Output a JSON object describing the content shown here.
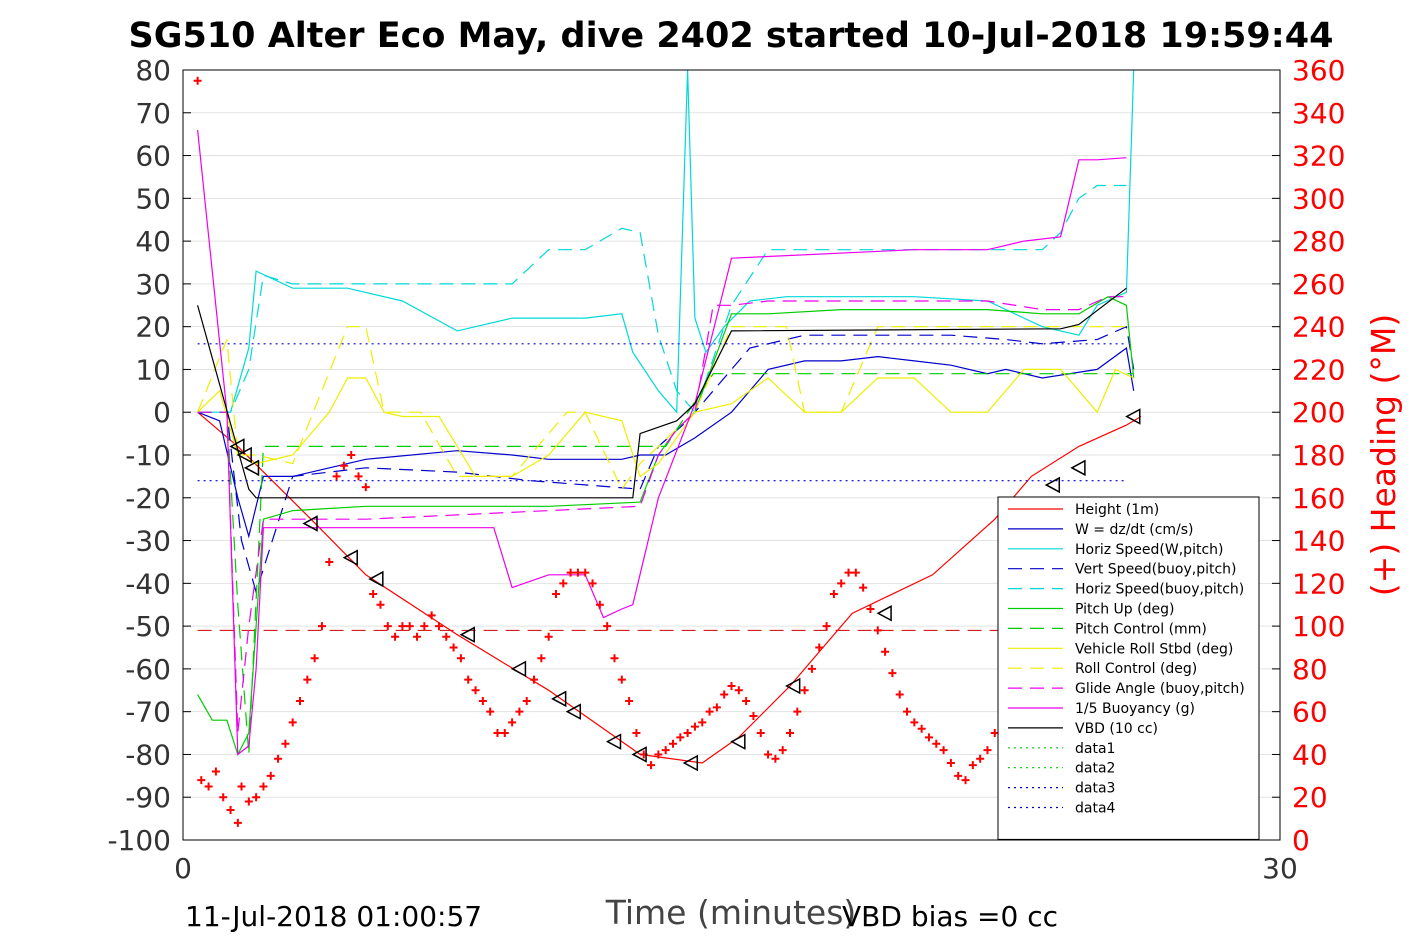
{
  "title": "SG510 Alter Eco May, dive 2402 started 10-Jul-2018 19:59:44",
  "footer": {
    "left_timestamp": "11-Jul-2018 01:00:57",
    "vbd_bias": "VBD bias =0 cc"
  },
  "chart_data": {
    "type": "line",
    "xlabel": "Time (minutes)",
    "ylabel_left": "",
    "ylabel_right": "(+) Heading (°M)",
    "xlim": [
      0,
      30
    ],
    "ylim_left": [
      -100,
      80
    ],
    "ylim_right": [
      0,
      360
    ],
    "x_ticks": [
      0,
      30
    ],
    "y_ticks_left": [
      -100,
      -90,
      -80,
      -70,
      -60,
      -50,
      -40,
      -30,
      -20,
      -10,
      0,
      10,
      20,
      30,
      40,
      50,
      60,
      70,
      80
    ],
    "y_ticks_right": [
      0,
      20,
      40,
      60,
      80,
      100,
      120,
      140,
      160,
      180,
      200,
      220,
      240,
      260,
      280,
      300,
      320,
      340,
      360
    ],
    "grid": true,
    "legend_position": "lower-right",
    "series": [
      {
        "name": "Height (1m)",
        "color": "#ff0000",
        "dash": "solid",
        "x": [
          0.4,
          1.5,
          3.5,
          5.0,
          7.5,
          10.0,
          12.5,
          14.2,
          15.2,
          16.6,
          18.3,
          20.5,
          22.2,
          23.2,
          24.5,
          25.8,
          26.2
        ],
        "y": [
          0,
          -8,
          -25,
          -38,
          -52,
          -65,
          -80,
          -82,
          -76,
          -64,
          -47,
          -38,
          -25,
          -15,
          -8,
          -3,
          -1
        ]
      },
      {
        "name": "W = dz/dt (cm/s)",
        "color": "#0000cc",
        "dash": "solid",
        "x": [
          0.4,
          1.0,
          1.5,
          1.8,
          2.2,
          3.0,
          5.0,
          7.5,
          9.0,
          10.0,
          11.0,
          12.0,
          12.5,
          13.2,
          14.0,
          15.0,
          16.0,
          17.0,
          18.0,
          19.0,
          20.0,
          21.0,
          22.0,
          22.5,
          23.5,
          25.0,
          25.8,
          26.0
        ],
        "y": [
          0,
          -2,
          -20,
          -29,
          -15,
          -15,
          -11,
          -9,
          -10,
          -11,
          -11,
          -11,
          -10,
          -10,
          -6,
          0,
          10,
          12,
          12,
          13,
          12,
          11,
          9,
          10,
          8,
          10,
          15,
          5
        ]
      },
      {
        "name": "Horiz Speed(W,pitch)",
        "color": "#00d8d8",
        "dash": "solid",
        "x": [
          0.4,
          1.3,
          1.8,
          2.0,
          3.0,
          4.5,
          6.0,
          7.5,
          9.0,
          10.0,
          11.0,
          12.0,
          12.3,
          13.0,
          13.5,
          13.8,
          14.0,
          14.3,
          14.8,
          15.5,
          16.5,
          18.0,
          20.0,
          22.0,
          23.5,
          24.5,
          25.0,
          25.8,
          26.0
        ],
        "y": [
          0,
          0,
          15,
          33,
          29,
          29,
          26,
          19,
          22,
          22,
          22,
          23,
          14,
          5,
          0,
          80,
          22,
          14,
          20,
          26,
          27,
          27,
          27,
          26,
          20,
          18,
          25,
          28,
          80
        ]
      },
      {
        "name": "Vert Speed(buoy,pitch)",
        "color": "#0000cc",
        "dash": "dashed",
        "x": [
          0.4,
          1.2,
          1.6,
          2.0,
          3.0,
          5.0,
          7.5,
          9.5,
          11.0,
          12.5,
          13.0,
          13.8,
          14.5,
          15.5,
          17.0,
          19.0,
          21.0,
          22.5,
          23.5,
          25.0,
          25.8,
          26.0
        ],
        "y": [
          0,
          0,
          -30,
          -42,
          -15,
          -13,
          -14,
          -16,
          -17,
          -18,
          -8,
          -2,
          5,
          15,
          18,
          18,
          18,
          17,
          16,
          17,
          20,
          10
        ]
      },
      {
        "name": "Horiz Speed(buoy,pitch)",
        "color": "#00d8d8",
        "dash": "dashed",
        "x": [
          0.4,
          1.3,
          1.8,
          2.2,
          3.0,
          5.0,
          7.5,
          9.0,
          10.0,
          11.0,
          12.0,
          12.5,
          13.0,
          13.5,
          14.0,
          15.0,
          16.0,
          18.0,
          20.0,
          22.0,
          23.5,
          24.0,
          24.5,
          25.0,
          25.8
        ],
        "y": [
          0,
          0,
          10,
          32,
          30,
          30,
          30,
          30,
          38,
          38,
          43,
          42,
          18,
          5,
          0,
          25,
          38,
          38,
          38,
          38,
          38,
          42,
          50,
          53,
          53
        ]
      },
      {
        "name": "Pitch Up (deg)",
        "color": "#00cc00",
        "dash": "solid",
        "x": [
          0.4,
          0.8,
          1.2,
          1.5,
          1.8,
          2.2,
          3.0,
          5.0,
          7.5,
          10.0,
          12.5,
          13.0,
          13.5,
          14.0,
          15.0,
          16.0,
          18.0,
          20.0,
          22.0,
          23.5,
          24.5,
          25.3,
          25.8,
          26.0
        ],
        "y": [
          -66,
          -72,
          -72,
          -80,
          -75,
          -25,
          -23,
          -22,
          -22,
          -22,
          -21,
          -10,
          -4,
          0,
          23,
          23,
          24,
          24,
          24,
          23,
          23,
          27,
          25,
          8
        ]
      },
      {
        "name": "Pitch Control (mm)",
        "color": "#00cc00",
        "dash": "dashed",
        "x": [
          0.4,
          1.2,
          1.5,
          1.8,
          2.2,
          12.8,
          13.2,
          14.5,
          15.0,
          25.8,
          26.0
        ],
        "y": [
          0,
          0,
          -45,
          -80,
          -8,
          -8,
          -8,
          9,
          9,
          9,
          9
        ]
      },
      {
        "name": "Vehicle Roll Stbd (deg)",
        "color": "#eeee00",
        "dash": "solid",
        "x": [
          0.4,
          1.0,
          1.5,
          2.0,
          3.0,
          4.0,
          4.5,
          5.0,
          5.5,
          6.0,
          7.0,
          8.0,
          9.0,
          10.0,
          11.0,
          12.0,
          12.5,
          13.0,
          14.0,
          15.0,
          16.0,
          17.0,
          18.0,
          19.0,
          20.0,
          21.0,
          22.0,
          23.0,
          24.0,
          25.0,
          25.5,
          26.0
        ],
        "y": [
          0,
          5,
          -10,
          -12,
          -10,
          0,
          8,
          8,
          0,
          -1,
          -1,
          -15,
          -15,
          -10,
          0,
          -2,
          -15,
          -12,
          0,
          2,
          8,
          0,
          0,
          8,
          8,
          0,
          0,
          10,
          10,
          0,
          10,
          8
        ]
      },
      {
        "name": "Roll Control (deg)",
        "color": "#eeee00",
        "dash": "dashed",
        "x": [
          0.4,
          1.2,
          1.5,
          2.0,
          3.0,
          4.5,
          5.0,
          5.5,
          6.5,
          7.5,
          9.0,
          10.5,
          11.0,
          12.0,
          12.5,
          14.0,
          15.0,
          16.5,
          17.0,
          18.0,
          19.0,
          20.0,
          22.0,
          24.0,
          25.0,
          25.8
        ],
        "y": [
          0,
          17,
          -10,
          -10,
          -12,
          20,
          20,
          0,
          0,
          -15,
          -15,
          0,
          0,
          -18,
          -12,
          0,
          20,
          20,
          0,
          0,
          20,
          20,
          20,
          20,
          20,
          20
        ]
      },
      {
        "name": "Glide Angle (buoy,pitch)",
        "color": "#ee00ee",
        "dash": "dashed",
        "x": [
          0.4,
          1.2,
          1.5,
          1.8,
          2.2,
          3.0,
          5.0,
          7.5,
          10.0,
          12.5,
          13.0,
          13.5,
          14.0,
          14.5,
          15.0,
          16.0,
          18.0,
          20.0,
          22.0,
          23.5,
          24.5,
          25.3,
          25.8
        ],
        "y": [
          0,
          0,
          -75,
          -50,
          -25,
          -25,
          -25,
          -24,
          -23,
          -22,
          -10,
          -4,
          0,
          25,
          25,
          26,
          26,
          26,
          26,
          24,
          24,
          27,
          27
        ]
      },
      {
        "name": "1/5 Buoyancy (g)",
        "color": "#ee00ee",
        "dash": "solid",
        "x": [
          0.4,
          1.2,
          1.5,
          1.8,
          2.0,
          2.2,
          5.0,
          6.0,
          7.0,
          8.5,
          9.0,
          10.0,
          11.0,
          11.5,
          12.0,
          12.3,
          13.0,
          14.0,
          15.0,
          20.0,
          22.0,
          23.0,
          24.0,
          24.5,
          25.0,
          25.8
        ],
        "y": [
          66,
          0,
          -80,
          -78,
          -60,
          -27,
          -27,
          -27,
          -27,
          -27,
          -41,
          -38,
          -38,
          -48,
          -46,
          -45,
          -20,
          2,
          36,
          38,
          38,
          40,
          41,
          59,
          59,
          59.5
        ]
      },
      {
        "name": "VBD (10 cc)",
        "color": "#000000",
        "dash": "solid",
        "x": [
          0.4,
          1.8,
          2.0,
          3.5,
          12.3,
          12.5,
          13.5,
          14.0,
          15.0,
          24.0,
          24.5,
          25.8
        ],
        "y": [
          25,
          -18,
          -20,
          -20,
          -20,
          -5,
          -2,
          2,
          19,
          19.5,
          20.5,
          29
        ]
      },
      {
        "name": "data1",
        "color": "#00cc00",
        "dash": "dotted",
        "x": [],
        "y": []
      },
      {
        "name": "data2",
        "color": "#00cc00",
        "dash": "dotted",
        "x": [],
        "y": []
      },
      {
        "name": "data3",
        "color": "#0000cc",
        "dash": "dotted",
        "x": [
          0.4,
          25.8
        ],
        "y": [
          16,
          16
        ]
      },
      {
        "name": "data4",
        "color": "#0000cc",
        "dash": "dotted",
        "x": [
          0.4,
          25.8
        ],
        "y": [
          -16,
          -16
        ]
      }
    ],
    "reference_line": {
      "color": "#cc0000",
      "dash": "dashed",
      "y": -51,
      "x": [
        0.4,
        25.8
      ]
    },
    "triangle_markers": {
      "color": "#000000",
      "x": [
        1.5,
        1.7,
        1.9,
        3.5,
        4.6,
        5.3,
        7.8,
        9.2,
        10.3,
        10.7,
        11.8,
        12.5,
        13.9,
        15.2,
        16.7,
        19.2,
        23.8,
        24.5,
        26.0
      ],
      "y": [
        -8,
        -10,
        -13,
        -26,
        -34,
        -39,
        -52,
        -60,
        -67,
        -70,
        -77,
        -80,
        -82,
        -77,
        -64,
        -47,
        -17,
        -13,
        -1
      ]
    },
    "heading_points": {
      "color": "#ff0000",
      "marker": "+",
      "axis": "right",
      "x": [
        0.4,
        0.5,
        0.7,
        0.9,
        1.1,
        1.3,
        1.5,
        1.6,
        1.8,
        2.0,
        2.2,
        2.4,
        2.6,
        2.8,
        3.0,
        3.2,
        3.4,
        3.6,
        3.8,
        4.0,
        4.2,
        4.4,
        4.6,
        4.8,
        5.0,
        5.2,
        5.4,
        5.6,
        5.8,
        6.0,
        6.2,
        6.4,
        6.6,
        6.8,
        7.0,
        7.2,
        7.4,
        7.6,
        7.8,
        8.0,
        8.2,
        8.4,
        8.6,
        8.8,
        9.0,
        9.2,
        9.4,
        9.6,
        9.8,
        10.0,
        10.2,
        10.4,
        10.6,
        10.8,
        11.0,
        11.2,
        11.4,
        11.6,
        11.8,
        12.0,
        12.2,
        12.4,
        12.6,
        12.8,
        13.0,
        13.2,
        13.4,
        13.6,
        13.8,
        14.0,
        14.2,
        14.4,
        14.6,
        14.8,
        15.0,
        15.2,
        15.4,
        15.6,
        15.8,
        16.0,
        16.2,
        16.4,
        16.6,
        16.8,
        17.0,
        17.2,
        17.4,
        17.6,
        17.8,
        18.0,
        18.2,
        18.4,
        18.6,
        18.8,
        19.0,
        19.2,
        19.4,
        19.6,
        19.8,
        20.0,
        20.2,
        20.4,
        20.6,
        20.8,
        21.0,
        21.2,
        21.4,
        21.6,
        21.8,
        22.0,
        22.2,
        22.4,
        22.6,
        22.8,
        23.0,
        23.2
      ],
      "y": [
        355,
        28,
        25,
        32,
        20,
        14,
        8,
        25,
        18,
        20,
        25,
        30,
        38,
        45,
        55,
        65,
        75,
        85,
        100,
        130,
        170,
        175,
        180,
        170,
        165,
        115,
        110,
        100,
        95,
        100,
        100,
        95,
        100,
        105,
        100,
        95,
        90,
        85,
        75,
        70,
        65,
        60,
        50,
        50,
        55,
        60,
        65,
        75,
        85,
        95,
        115,
        120,
        125,
        125,
        125,
        120,
        110,
        100,
        85,
        75,
        65,
        50,
        40,
        35,
        40,
        42,
        45,
        48,
        50,
        53,
        55,
        60,
        62,
        68,
        72,
        70,
        65,
        58,
        50,
        40,
        38,
        42,
        50,
        60,
        70,
        80,
        90,
        100,
        115,
        120,
        125,
        125,
        118,
        108,
        98,
        88,
        78,
        68,
        60,
        55,
        52,
        48,
        45,
        42,
        36,
        30,
        28,
        35,
        38,
        42,
        50,
        58,
        65,
        75,
        85,
        95
      ]
    }
  }
}
